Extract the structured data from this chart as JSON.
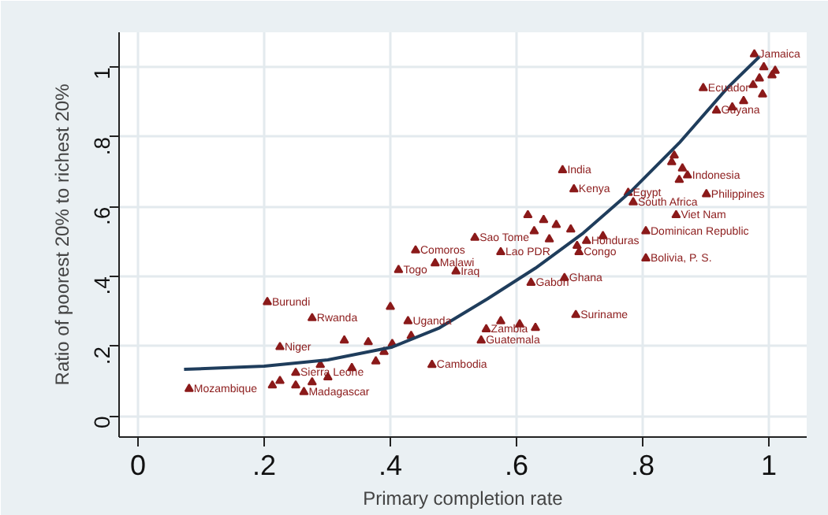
{
  "chart_data": {
    "type": "scatter",
    "xlabel": "Primary completion rate",
    "ylabel": "Ratio of poorest 20% to richest 20%",
    "xlim": [
      -0.03,
      1.06
    ],
    "ylim": [
      -0.06,
      1.1
    ],
    "xticks": [
      0,
      {
        "value": 0.2,
        "label": ".2"
      },
      {
        "value": 0.4,
        "label": ".4"
      },
      {
        "value": 0.6,
        "label": ".6"
      },
      {
        "value": 0.8,
        "label": ".8"
      },
      1
    ],
    "yticks": [
      0,
      {
        "value": 0.2,
        "label": ".2"
      },
      {
        "value": 0.4,
        "label": ".4"
      },
      {
        "value": 0.6,
        "label": ".6"
      },
      {
        "value": 0.8,
        "label": ".8"
      },
      1
    ],
    "grid": true,
    "marker": "triangle",
    "series": [
      {
        "color": "#8b1a1a",
        "x": [
          0.977,
          0.896,
          0.917,
          0.871,
          0.673,
          0.691,
          0.777,
          0.785,
          0.901,
          0.853,
          0.805,
          0.805,
          0.711,
          0.699,
          0.676,
          0.623,
          0.694,
          0.544,
          0.552,
          0.534,
          0.575,
          0.44,
          0.471,
          0.413,
          0.504,
          0.428,
          0.205,
          0.276,
          0.225,
          0.25,
          0.466,
          0.081,
          0.263,
          0.85,
          0.4,
          0.289,
          0.992,
          1.01,
          1.005,
          0.985,
          0.975,
          0.99,
          0.96,
          0.942,
          0.846,
          0.863,
          0.858,
          0.618,
          0.643,
          0.663,
          0.628,
          0.686,
          0.652,
          0.696,
          0.737,
          0.575,
          0.605,
          0.63,
          0.327,
          0.365,
          0.403,
          0.433,
          0.39,
          0.225,
          0.25,
          0.276,
          0.301,
          0.213,
          0.339,
          0.377
        ],
        "values": [
          1.037,
          0.94,
          0.876,
          0.69,
          0.705,
          0.65,
          0.64,
          0.613,
          0.636,
          0.576,
          0.53,
          0.452,
          0.502,
          0.47,
          0.396,
          0.382,
          0.29,
          0.217,
          0.249,
          0.511,
          0.47,
          0.475,
          0.438,
          0.419,
          0.415,
          0.272,
          0.327,
          0.281,
          0.198,
          0.124,
          0.147,
          0.078,
          0.069,
          0.747,
          0.313,
          0.147,
          1.0,
          0.99,
          0.977,
          0.968,
          0.949,
          0.922,
          0.903,
          0.885,
          0.728,
          0.71,
          0.677,
          0.576,
          0.562,
          0.548,
          0.53,
          0.535,
          0.507,
          0.488,
          0.516,
          0.272,
          0.263,
          0.253,
          0.217,
          0.212,
          0.207,
          0.23,
          0.184,
          0.101,
          0.088,
          0.097,
          0.111,
          0.088,
          0.138,
          0.157
        ]
      },
      {
        "type": "line",
        "color": "#1f3d5c",
        "marker": "none",
        "x": [
          0.073,
          0.2,
          0.301,
          0.403,
          0.478,
          0.554,
          0.63,
          0.706,
          0.782,
          0.858,
          0.934,
          0.985
        ],
        "values": [
          0.134,
          0.143,
          0.161,
          0.198,
          0.253,
          0.336,
          0.424,
          0.525,
          0.645,
          0.783,
          0.94,
          1.03
        ]
      }
    ],
    "annotations": [
      {
        "text": "Jamaica",
        "x": 0.977,
        "y": 1.037
      },
      {
        "text": "Ecuador",
        "x": 0.896,
        "y": 0.94
      },
      {
        "text": "Guyana",
        "x": 0.917,
        "y": 0.876
      },
      {
        "text": "Indonesia",
        "x": 0.871,
        "y": 0.69
      },
      {
        "text": "India",
        "x": 0.673,
        "y": 0.705
      },
      {
        "text": "Kenya",
        "x": 0.691,
        "y": 0.65
      },
      {
        "text": "Egypt",
        "x": 0.777,
        "y": 0.64
      },
      {
        "text": "South Africa",
        "x": 0.785,
        "y": 0.613
      },
      {
        "text": "Philippines",
        "x": 0.901,
        "y": 0.636
      },
      {
        "text": "Viet Nam",
        "x": 0.853,
        "y": 0.576
      },
      {
        "text": "Dominican Republic",
        "x": 0.805,
        "y": 0.53
      },
      {
        "text": "Bolivia, P. S.",
        "x": 0.805,
        "y": 0.452
      },
      {
        "text": "Honduras",
        "x": 0.711,
        "y": 0.502
      },
      {
        "text": "Congo",
        "x": 0.699,
        "y": 0.47
      },
      {
        "text": "Ghana",
        "x": 0.676,
        "y": 0.396
      },
      {
        "text": "Gabon",
        "x": 0.623,
        "y": 0.382
      },
      {
        "text": "Suriname",
        "x": 0.694,
        "y": 0.29
      },
      {
        "text": "Guatemala",
        "x": 0.544,
        "y": 0.217
      },
      {
        "text": "Zambia",
        "x": 0.552,
        "y": 0.249
      },
      {
        "text": "Sao Tome",
        "x": 0.534,
        "y": 0.511
      },
      {
        "text": "Lao PDR",
        "x": 0.575,
        "y": 0.47
      },
      {
        "text": "Comoros",
        "x": 0.44,
        "y": 0.475
      },
      {
        "text": "Malawi",
        "x": 0.471,
        "y": 0.438
      },
      {
        "text": "Togo",
        "x": 0.413,
        "y": 0.419
      },
      {
        "text": "Iraq",
        "x": 0.504,
        "y": 0.415
      },
      {
        "text": "Uganda",
        "x": 0.428,
        "y": 0.272
      },
      {
        "text": "Burundi",
        "x": 0.205,
        "y": 0.327
      },
      {
        "text": "Rwanda",
        "x": 0.276,
        "y": 0.281
      },
      {
        "text": "Niger",
        "x": 0.225,
        "y": 0.198
      },
      {
        "text": "Sierra Leone",
        "x": 0.25,
        "y": 0.124
      },
      {
        "text": "Cambodia",
        "x": 0.466,
        "y": 0.147
      },
      {
        "text": "Mozambique",
        "x": 0.081,
        "y": 0.078
      },
      {
        "text": "Madagascar",
        "x": 0.263,
        "y": 0.069
      }
    ]
  }
}
